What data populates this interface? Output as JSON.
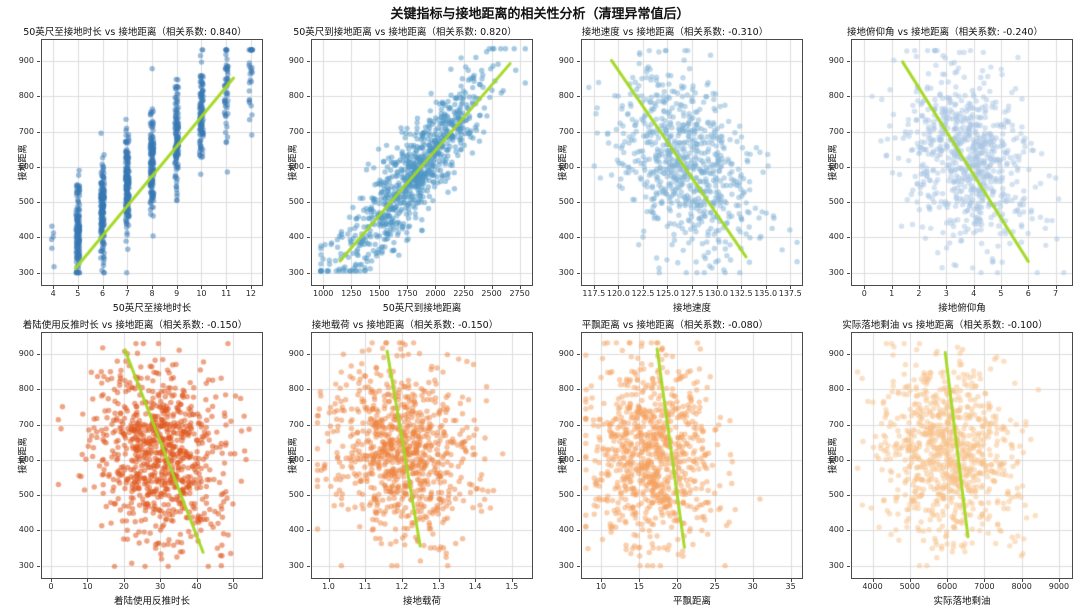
{
  "figure": {
    "title": "关键指标与接地距离的相关性分析（清理异常值后）"
  },
  "style": {
    "background": "#ffffff",
    "grid_color": "#dcdcdc",
    "spine_color": "#4a4a4a",
    "trend_color": "#a2d821",
    "text_color": "#1a1a1a",
    "point_radius": 2.7
  },
  "chart_data": [
    {
      "type": "scatter",
      "title": "50英尺至接地时长 vs 接地距离（相关系数: 0.840）",
      "xlabel": "50英尺至接地时长",
      "ylabel": "接地距离",
      "correlation": 0.84,
      "xlim": [
        3.55,
        12.45
      ],
      "xticks": [
        4,
        5,
        6,
        7,
        8,
        9,
        10,
        11,
        12
      ],
      "xtick_labels": [
        "4",
        "5",
        "6",
        "7",
        "8",
        "9",
        "10",
        "11",
        "12"
      ],
      "ylim": [
        265,
        960
      ],
      "yticks": [
        300,
        400,
        500,
        600,
        700,
        800,
        900
      ],
      "ytick_labels": [
        "300",
        "400",
        "500",
        "600",
        "700",
        "800",
        "900"
      ],
      "grid": true,
      "n_points": 950,
      "point_color": "#3878b4",
      "point_alpha": 0.5,
      "trend": {
        "x1": 4.9,
        "y1": 312,
        "x2": 11.3,
        "y2": 852
      },
      "dist": {
        "kind": "discrete",
        "xvalues": [
          4,
          5,
          6,
          7,
          8,
          9,
          10,
          11,
          12
        ],
        "xweights": [
          6,
          120,
          135,
          150,
          135,
          110,
          80,
          45,
          22
        ],
        "jitter": 0.07,
        "y_intercept": 90,
        "y_slope": 66,
        "y_noise": 72,
        "y_clamp": [
          300,
          932
        ]
      },
      "seed": 11
    },
    {
      "type": "scatter",
      "title": "50英尺到接地距离 vs 接地距离（相关系数: 0.820）",
      "xlabel": "50英尺到接地距离",
      "ylabel": "接地距离",
      "correlation": 0.82,
      "xlim": [
        900,
        2860
      ],
      "xticks": [
        1000,
        1250,
        1500,
        1750,
        2000,
        2250,
        2500,
        2750
      ],
      "xtick_labels": [
        "1000",
        "1250",
        "1500",
        "1750",
        "2000",
        "2250",
        "2500",
        "2750"
      ],
      "ylim": [
        265,
        960
      ],
      "yticks": [
        300,
        400,
        500,
        600,
        700,
        800,
        900
      ],
      "ytick_labels": [
        "300",
        "400",
        "500",
        "600",
        "700",
        "800",
        "900"
      ],
      "grid": true,
      "n_points": 850,
      "point_color": "#4e96c6",
      "point_alpha": 0.5,
      "trend": {
        "x1": 1150,
        "y1": 333,
        "x2": 2665,
        "y2": 893
      },
      "dist": {
        "kind": "gauss",
        "x_mean": 1800,
        "x_std": 330,
        "x_clamp": [
          980,
          2800
        ],
        "y_intercept": -100,
        "y_slope": 0.375,
        "y_noise": 65,
        "y_clamp": [
          305,
          935
        ]
      },
      "seed": 22
    },
    {
      "type": "scatter",
      "title": "接地速度 vs 接地距离（相关系数: -0.310）",
      "xlabel": "接地速度",
      "ylabel": "接地距离",
      "correlation": -0.31,
      "xlim": [
        116.3,
        138.7
      ],
      "xticks": [
        117.5,
        120.0,
        122.5,
        125.0,
        127.5,
        130.0,
        132.5,
        135.0,
        137.5
      ],
      "xtick_labels": [
        "117.5",
        "120.0",
        "122.5",
        "125.0",
        "127.5",
        "130.0",
        "132.5",
        "135.0",
        "137.5"
      ],
      "ylim": [
        265,
        960
      ],
      "yticks": [
        300,
        400,
        500,
        600,
        700,
        800,
        900
      ],
      "ytick_labels": [
        "300",
        "400",
        "500",
        "600",
        "700",
        "800",
        "900"
      ],
      "grid": true,
      "n_points": 750,
      "point_color": "#7fb2d6",
      "point_alpha": 0.5,
      "trend": {
        "x1": 119.3,
        "y1": 902,
        "x2": 133.0,
        "y2": 345
      },
      "dist": {
        "kind": "gauss",
        "x_mean": 126.6,
        "x_std": 3.4,
        "x_clamp": [
          117,
          138.2
        ],
        "y_intercept": 2255,
        "y_slope": -13,
        "y_noise": 118,
        "y_clamp": [
          300,
          930
        ]
      },
      "seed": 33
    },
    {
      "type": "scatter",
      "title": "接地俯仰角 vs 接地距离（相关系数: -0.240）",
      "xlabel": "接地俯仰角",
      "ylabel": "接地距离",
      "correlation": -0.24,
      "xlim": [
        -0.45,
        7.6
      ],
      "xticks": [
        0,
        1,
        2,
        3,
        4,
        5,
        6,
        7
      ],
      "xtick_labels": [
        "0",
        "1",
        "2",
        "3",
        "4",
        "5",
        "6",
        "7"
      ],
      "ylim": [
        265,
        960
      ],
      "yticks": [
        300,
        400,
        500,
        600,
        700,
        800,
        900
      ],
      "ytick_labels": [
        "300",
        "400",
        "500",
        "600",
        "700",
        "800",
        "900"
      ],
      "grid": true,
      "n_points": 750,
      "point_color": "#a9c6e4",
      "point_alpha": 0.5,
      "trend": {
        "x1": 1.4,
        "y1": 898,
        "x2": 6.0,
        "y2": 332
      },
      "dist": {
        "kind": "gauss",
        "x_mean": 3.8,
        "x_std": 1.15,
        "x_clamp": [
          0,
          7.3
        ],
        "y_intercept": 730,
        "y_slope": -29,
        "y_noise": 126,
        "y_clamp": [
          300,
          930
        ]
      },
      "seed": 44
    },
    {
      "type": "scatter",
      "title": "着陆使用反推时长 vs 接地距离（相关系数: -0.150）",
      "xlabel": "着陆使用反推时长",
      "ylabel": "接地距离",
      "correlation": -0.15,
      "xlim": [
        -2.5,
        58
      ],
      "xticks": [
        0,
        10,
        20,
        30,
        40,
        50
      ],
      "xtick_labels": [
        "0",
        "10",
        "20",
        "30",
        "40",
        "50"
      ],
      "ylim": [
        265,
        960
      ],
      "yticks": [
        300,
        400,
        500,
        600,
        700,
        800,
        900
      ],
      "ytick_labels": [
        "300",
        "400",
        "500",
        "600",
        "700",
        "800",
        "900"
      ],
      "grid": true,
      "n_points": 850,
      "point_color": "#e05a20",
      "point_alpha": 0.55,
      "trend": {
        "x1": 20.3,
        "y1": 912,
        "x2": 41.8,
        "y2": 338
      },
      "dist": {
        "kind": "gauss",
        "x_mean": 29.5,
        "x_std": 8.8,
        "x_clamp": [
          2,
          57
        ],
        "y_intercept": 689,
        "y_slope": -2.3,
        "y_noise": 124,
        "y_clamp": [
          298,
          930
        ]
      },
      "seed": 55
    },
    {
      "type": "scatter",
      "title": "接地载荷 vs 接地距离（相关系数: -0.150）",
      "xlabel": "接地载荷",
      "ylabel": "接地距离",
      "correlation": -0.15,
      "xlim": [
        0.955,
        1.555
      ],
      "xticks": [
        1.0,
        1.1,
        1.2,
        1.3,
        1.4,
        1.5
      ],
      "xtick_labels": [
        "1.0",
        "1.1",
        "1.2",
        "1.3",
        "1.4",
        "1.5"
      ],
      "ylim": [
        265,
        960
      ],
      "yticks": [
        300,
        400,
        500,
        600,
        700,
        800,
        900
      ],
      "ytick_labels": [
        "300",
        "400",
        "500",
        "600",
        "700",
        "800",
        "900"
      ],
      "grid": true,
      "n_points": 850,
      "point_color": "#ee8340",
      "point_alpha": 0.5,
      "trend": {
        "x1": 1.16,
        "y1": 908,
        "x2": 1.25,
        "y2": 356
      },
      "dist": {
        "kind": "gauss",
        "x_mean": 1.2,
        "x_std": 0.092,
        "x_clamp": [
          0.97,
          1.53
        ],
        "y_intercept": 878,
        "y_slope": -215,
        "y_noise": 124,
        "y_clamp": [
          300,
          932
        ]
      },
      "seed": 66
    },
    {
      "type": "scatter",
      "title": "平飘距离 vs 接地距离（相关系数: -0.080）",
      "xlabel": "平飘距离",
      "ylabel": "接地距离",
      "correlation": -0.08,
      "xlim": [
        7.5,
        36.5
      ],
      "xticks": [
        10,
        15,
        20,
        25,
        30,
        35
      ],
      "xtick_labels": [
        "10",
        "15",
        "20",
        "25",
        "30",
        "35"
      ],
      "ylim": [
        265,
        960
      ],
      "yticks": [
        300,
        400,
        500,
        600,
        700,
        800,
        900
      ],
      "ytick_labels": [
        "300",
        "400",
        "500",
        "600",
        "700",
        "800",
        "900"
      ],
      "grid": true,
      "n_points": 850,
      "point_color": "#f5a260",
      "point_alpha": 0.5,
      "trend": {
        "x1": 17.4,
        "y1": 915,
        "x2": 21.0,
        "y2": 352
      },
      "dist": {
        "kind": "gauss",
        "x_mean": 16.8,
        "x_std": 4.1,
        "x_clamp": [
          8,
          35.2
        ],
        "y_intercept": 662.5,
        "y_slope": -2.5,
        "y_noise": 124,
        "y_clamp": [
          300,
          932
        ]
      },
      "seed": 77
    },
    {
      "type": "scatter",
      "title": "实际落地剩油 vs 接地距离（相关系数: -0.100）",
      "xlabel": "实际落地剩油",
      "ylabel": "接地距离",
      "correlation": -0.1,
      "xlim": [
        3450,
        9350
      ],
      "xticks": [
        4000,
        5000,
        6000,
        7000,
        8000,
        9000
      ],
      "xtick_labels": [
        "4000",
        "5000",
        "6000",
        "7000",
        "8000",
        "9000"
      ],
      "ylim": [
        265,
        960
      ],
      "yticks": [
        300,
        400,
        500,
        600,
        700,
        800,
        900
      ],
      "ytick_labels": [
        "300",
        "400",
        "500",
        "600",
        "700",
        "800",
        "900"
      ],
      "grid": true,
      "n_points": 850,
      "point_color": "#f8c28a",
      "point_alpha": 0.5,
      "trend": {
        "x1": 5950,
        "y1": 905,
        "x2": 6560,
        "y2": 382
      },
      "dist": {
        "kind": "gauss",
        "x_mean": 6000,
        "x_std": 940,
        "x_clamp": [
          3600,
          9260
        ],
        "y_intercept": 704,
        "y_slope": -0.014,
        "y_noise": 124,
        "y_clamp": [
          300,
          930
        ]
      },
      "seed": 88
    }
  ]
}
